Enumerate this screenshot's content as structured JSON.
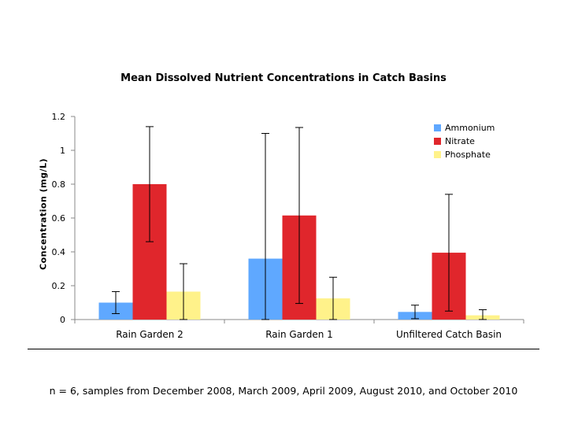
{
  "chart_data": {
    "type": "bar",
    "title": "Mean Dissolved Nutrient Concentrations in Catch Basins",
    "xlabel": "",
    "ylabel": "Concentration (mg/L)",
    "ylim": [
      0,
      1.2
    ],
    "yticks": [
      "0",
      "0.2",
      "0.4",
      "0.6",
      "0.8",
      "1",
      "1.2"
    ],
    "grid": false,
    "legend_position": "top-right",
    "categories": [
      "Rain Garden 2",
      "Rain Garden 1",
      "Unfiltered Catch Basin"
    ],
    "series": [
      {
        "name": "Ammonium",
        "color": "#5fa8ff",
        "values": [
          0.1,
          0.36,
          0.045
        ],
        "error": [
          0.065,
          0.74,
          0.04
        ]
      },
      {
        "name": "Nitrate",
        "color": "#e0262c",
        "values": [
          0.8,
          0.615,
          0.395
        ],
        "error": [
          0.34,
          0.52,
          0.345
        ]
      },
      {
        "name": "Phosphate",
        "color": "#fff28a",
        "values": [
          0.165,
          0.125,
          0.025
        ],
        "error": [
          0.165,
          0.125,
          0.033
        ]
      }
    ]
  },
  "footnote": "n = 6, samples from December 2008, March 2009, April 2009, August 2010, and October 2010"
}
